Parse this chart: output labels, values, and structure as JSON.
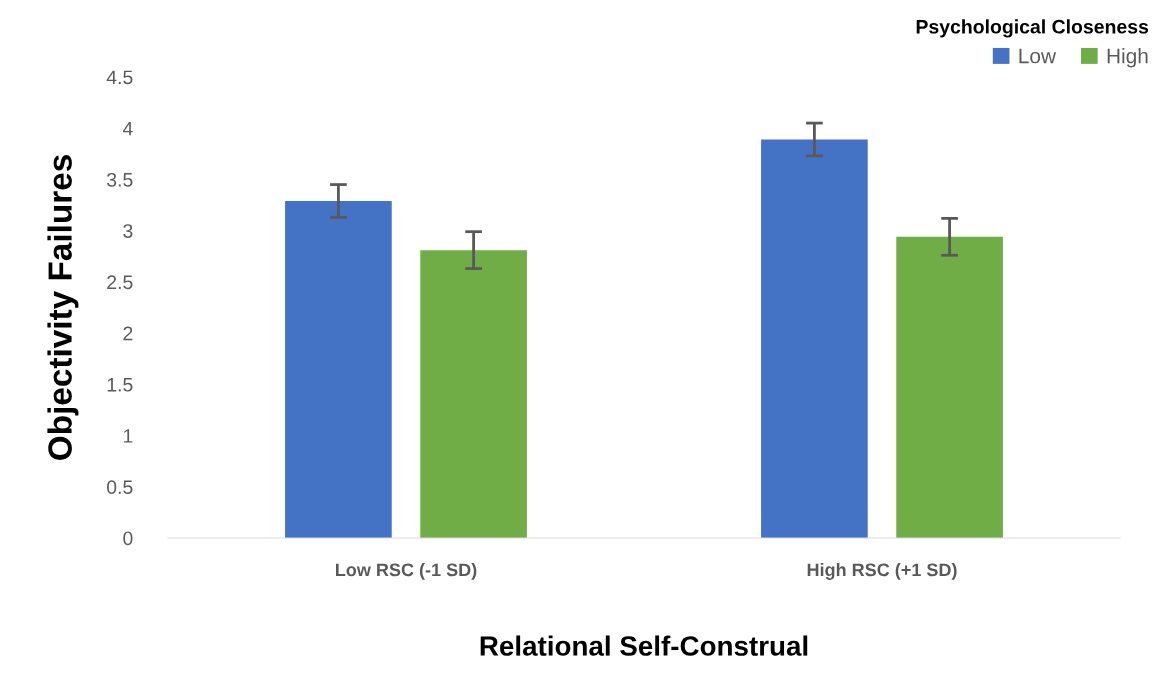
{
  "chart_data": {
    "type": "bar",
    "xlabel": "Relational Self-Construal",
    "ylabel": "Objectivity Failures",
    "legend_title": "Psychological Closeness",
    "categories": [
      "Low RSC (-1 SD)",
      "High RSC (+1 SD)"
    ],
    "series": [
      {
        "name": "Low",
        "color": "#4472c4",
        "values": [
          3.29,
          3.89
        ],
        "errors": [
          0.16,
          0.16
        ]
      },
      {
        "name": "High",
        "color": "#70ad47",
        "values": [
          2.81,
          2.94
        ],
        "errors": [
          0.18,
          0.18
        ]
      }
    ],
    "ylim": [
      0,
      4.5
    ],
    "yticks": [
      0,
      0.5,
      1,
      1.5,
      2,
      2.5,
      3,
      3.5,
      4,
      4.5
    ],
    "grid": false,
    "legend": "top right"
  }
}
